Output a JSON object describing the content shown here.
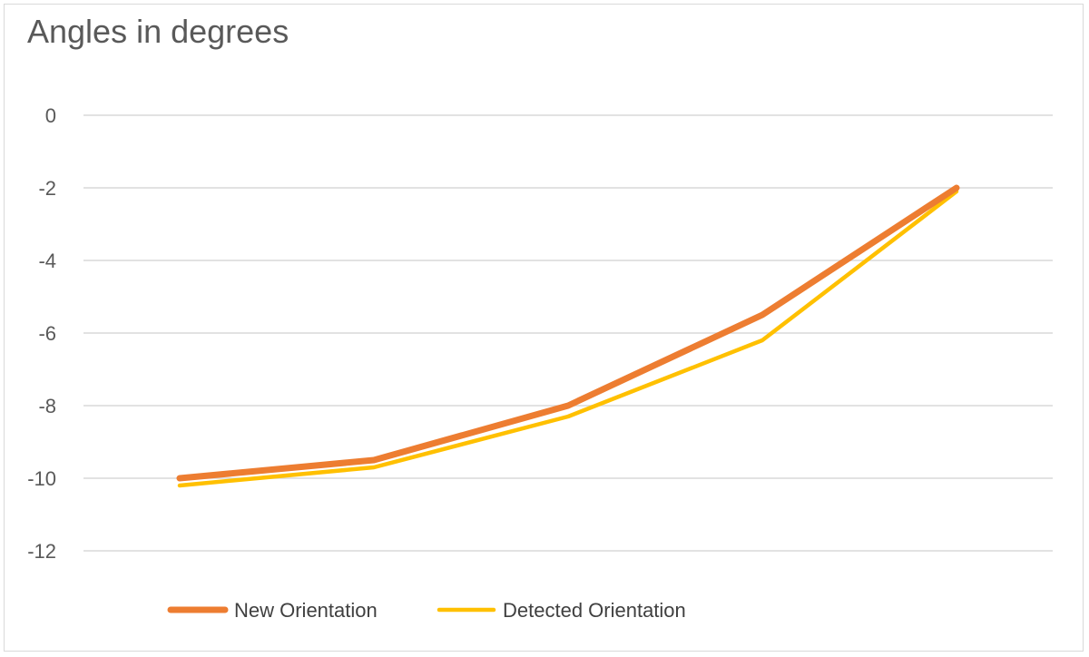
{
  "chart_data": {
    "type": "line",
    "title": "Angles in degrees",
    "xlabel": "",
    "ylabel": "",
    "x": [
      1,
      2,
      3,
      4,
      5
    ],
    "ylim": [
      -12,
      0
    ],
    "yticks": [
      0,
      -2,
      -4,
      -6,
      -8,
      -10,
      -12
    ],
    "grid": true,
    "legend_position": "bottom",
    "series": [
      {
        "name": "New Orientation",
        "color": "#ED7D31",
        "values": [
          -10.0,
          -9.5,
          -8.0,
          -5.5,
          -2.0
        ]
      },
      {
        "name": "Detected Orientation",
        "color": "#FFC000",
        "values": [
          -10.2,
          -9.7,
          -8.3,
          -6.2,
          -2.1
        ]
      }
    ]
  }
}
